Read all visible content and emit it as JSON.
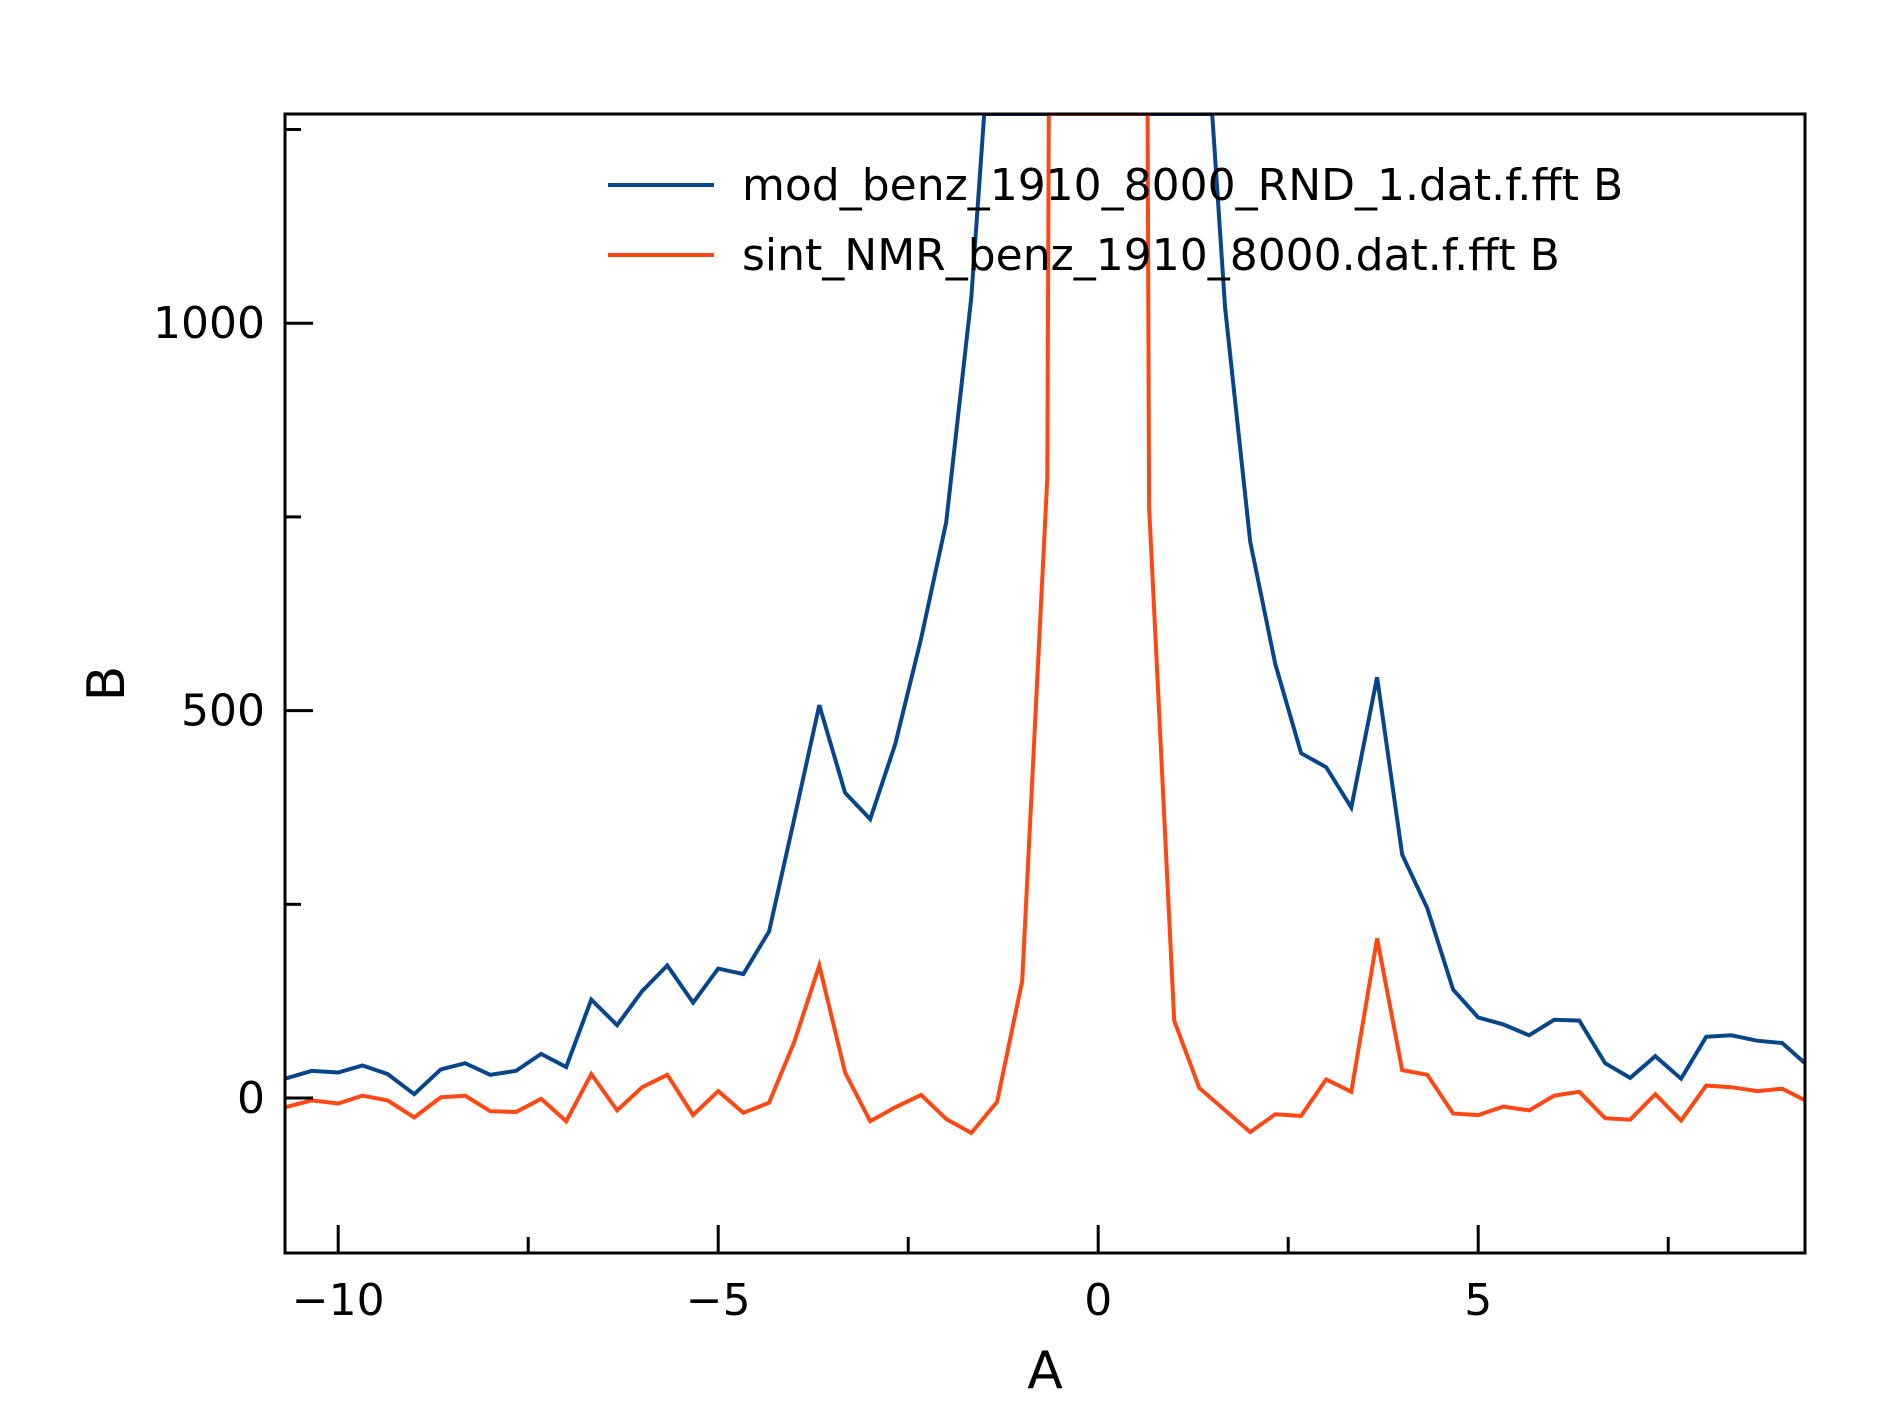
{
  "chart_data": {
    "type": "line",
    "title": "",
    "xlabel": "A",
    "ylabel": "B",
    "xlim": [
      -10.7,
      9.3
    ],
    "ylim": [
      -200,
      1270
    ],
    "x_ticks": [
      {
        "value": -10,
        "label": "−10"
      },
      {
        "value": -5,
        "label": "−5"
      },
      {
        "value": 0,
        "label": "0"
      },
      {
        "value": 5,
        "label": "5"
      }
    ],
    "x_minor_ticks": [
      -7.5,
      -2.5,
      2.5,
      7.5
    ],
    "y_ticks": [
      {
        "value": 0,
        "label": "0"
      },
      {
        "value": 500,
        "label": "500"
      },
      {
        "value": 1000,
        "label": "1000"
      }
    ],
    "y_minor_ticks": [
      250,
      750,
      1250
    ],
    "grid": false,
    "legend_position": "top-right",
    "series": [
      {
        "name": "mod_benz_1910_8000_RND_1.dat.f.fft B",
        "color": "#08468c",
        "x": [
          -10.7,
          -10.35,
          -10.0,
          -9.68,
          -9.35,
          -9.0,
          -8.65,
          -8.33,
          -8.0,
          -7.66,
          -7.33,
          -7.0,
          -6.67,
          -6.33,
          -6.0,
          -5.67,
          -5.33,
          -5.0,
          -4.67,
          -4.33,
          -4.0,
          -3.67,
          -3.33,
          -3.0,
          -2.67,
          -2.33,
          -2.0,
          -1.67,
          -1.5,
          1.5,
          1.67,
          2.0,
          2.33,
          2.67,
          3.0,
          3.33,
          3.67,
          4.0,
          4.33,
          4.67,
          5.0,
          5.33,
          5.67,
          6.0,
          6.33,
          6.67,
          7.0,
          7.33,
          7.67,
          8.0,
          8.33,
          8.67,
          9.0,
          9.3
        ],
        "y": [
          25,
          35,
          33,
          42,
          31,
          5,
          37,
          45,
          30,
          35,
          57,
          40,
          127,
          94,
          138,
          171,
          123,
          167,
          160,
          215,
          360,
          507,
          394,
          360,
          457,
          593,
          743,
          1033,
          1270,
          1270,
          1020,
          718,
          560,
          445,
          427,
          375,
          543,
          314,
          245,
          140,
          104,
          95,
          81,
          101,
          100,
          45,
          26,
          54,
          25,
          79,
          81,
          74,
          71,
          45
        ]
      },
      {
        "name": "sint_NMR_benz_1910_8000.dat.f.fft B",
        "color": "#ff4713",
        "x": [
          -10.7,
          -10.35,
          -10.0,
          -9.68,
          -9.35,
          -9.0,
          -8.65,
          -8.33,
          -8.0,
          -7.66,
          -7.33,
          -7.0,
          -6.67,
          -6.33,
          -6.0,
          -5.67,
          -5.33,
          -5.0,
          -4.67,
          -4.33,
          -4.0,
          -3.67,
          -3.33,
          -3.0,
          -2.67,
          -2.33,
          -2.0,
          -1.67,
          -1.33,
          -1.0,
          -0.67,
          -0.65,
          0.65,
          0.67,
          1.0,
          1.33,
          1.67,
          2.0,
          2.33,
          2.67,
          3.0,
          3.33,
          3.67,
          4.0,
          4.33,
          4.67,
          5.0,
          5.33,
          5.67,
          6.0,
          6.33,
          6.67,
          7.0,
          7.33,
          7.67,
          8.0,
          8.33,
          8.67,
          9.0,
          9.3
        ],
        "y": [
          -12,
          -3,
          -7,
          3,
          -3,
          -25,
          1,
          3,
          -17,
          -18,
          -1,
          -30,
          31,
          -16,
          14,
          30,
          -22,
          9,
          -19,
          -6,
          72,
          171,
          33,
          -30,
          -12,
          4,
          -27,
          -45,
          -5,
          151,
          800,
          1270,
          1270,
          763,
          100,
          13,
          -16,
          -44,
          -21,
          -23,
          24,
          8,
          206,
          36,
          30,
          -20,
          -22,
          -11,
          -16,
          3,
          8,
          -26,
          -28,
          5,
          -29,
          16,
          14,
          9,
          12,
          -3
        ]
      }
    ]
  }
}
